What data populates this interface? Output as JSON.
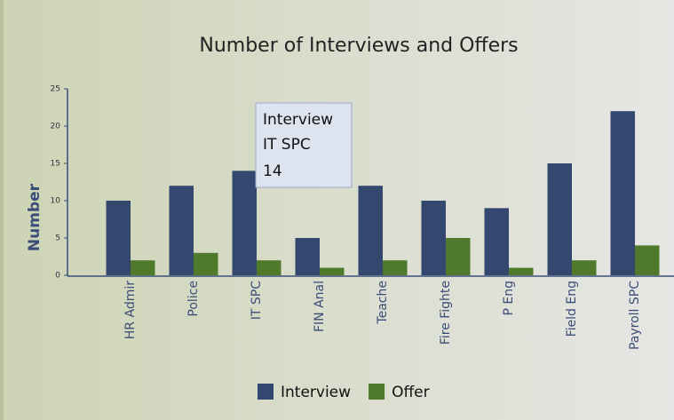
{
  "chart_data": {
    "type": "bar",
    "title": "Number of Interviews and Offers",
    "y_label": "Number",
    "categories": [
      "HR Admir",
      "Police",
      "IT SPC",
      "FIN Anal",
      "Teache",
      "Fire Fighte",
      "P Eng",
      "Field Eng",
      "Payroll SPC"
    ],
    "series": [
      {
        "name": "Interview",
        "color": "#34476f",
        "values": [
          10,
          12,
          14,
          5,
          12,
          10,
          9,
          15,
          22
        ]
      },
      {
        "name": "Offer",
        "color": "#4f7a2b",
        "values": [
          2,
          3,
          2,
          1,
          2,
          5,
          1,
          2,
          4
        ]
      }
    ],
    "ylim": [
      0,
      25
    ],
    "yticks": [
      0,
      5,
      10,
      15,
      20,
      25
    ],
    "grid": false,
    "legend": "bottom"
  }
}
